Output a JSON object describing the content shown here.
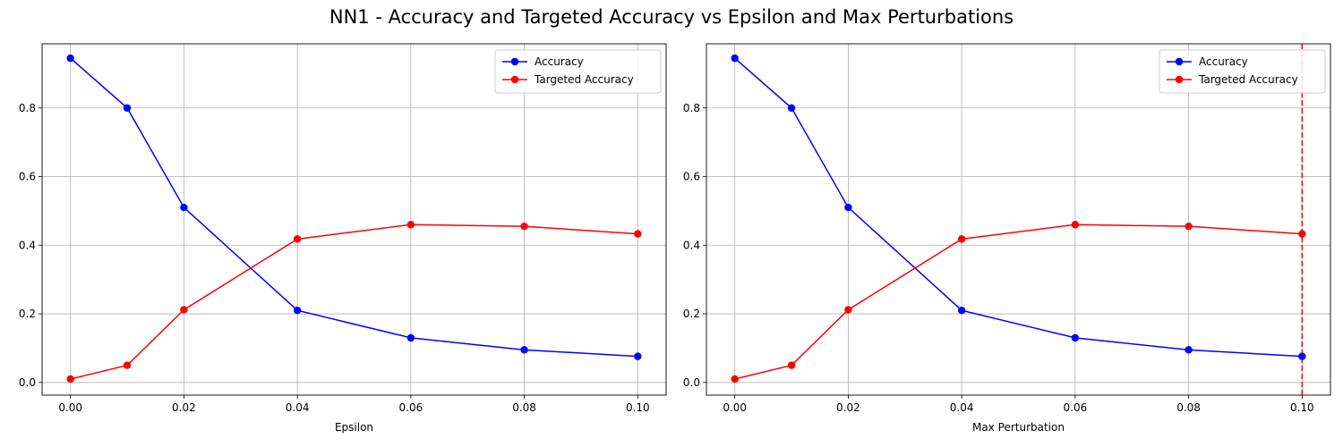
{
  "figure": {
    "title": "NN1 - Accuracy and Targeted Accuracy vs Epsilon and Max Perturbations"
  },
  "chart_data": [
    {
      "type": "line",
      "title": "",
      "xlabel": "Epsilon",
      "ylabel": "",
      "x": [
        0.0,
        0.01,
        0.02,
        0.04,
        0.06,
        0.08,
        0.1
      ],
      "xlim": [
        -0.005,
        0.105
      ],
      "ylim": [
        -0.037,
        0.987
      ],
      "xticks": [
        0.0,
        0.02,
        0.04,
        0.06,
        0.08,
        0.1
      ],
      "xtick_labels": [
        "0.00",
        "0.02",
        "0.04",
        "0.06",
        "0.08",
        "0.10"
      ],
      "yticks": [
        0.0,
        0.2,
        0.4,
        0.6,
        0.8
      ],
      "ytick_labels": [
        "0.0",
        "0.2",
        "0.4",
        "0.6",
        "0.8"
      ],
      "grid": true,
      "legend": "top-right",
      "series": [
        {
          "name": "Accuracy",
          "color": "#0000ff",
          "marker": "circle",
          "values": [
            0.945,
            0.8,
            0.51,
            0.21,
            0.13,
            0.095,
            0.076
          ]
        },
        {
          "name": "Targeted Accuracy",
          "color": "#ff0000",
          "marker": "circle",
          "values": [
            0.01,
            0.05,
            0.212,
            0.418,
            0.46,
            0.455,
            0.433
          ]
        }
      ]
    },
    {
      "type": "line",
      "title": "",
      "xlabel": "Max Perturbation",
      "ylabel": "",
      "x": [
        0.0,
        0.01,
        0.02,
        0.04,
        0.06,
        0.08,
        0.1
      ],
      "xlim": [
        -0.005,
        0.105
      ],
      "ylim": [
        -0.037,
        0.987
      ],
      "xticks": [
        0.0,
        0.02,
        0.04,
        0.06,
        0.08,
        0.1
      ],
      "xtick_labels": [
        "0.00",
        "0.02",
        "0.04",
        "0.06",
        "0.08",
        "0.10"
      ],
      "yticks": [
        0.0,
        0.2,
        0.4,
        0.6,
        0.8
      ],
      "ytick_labels": [
        "0.0",
        "0.2",
        "0.4",
        "0.6",
        "0.8"
      ],
      "grid": true,
      "legend": "top-right",
      "vline": {
        "x": 0.1,
        "color": "#ff0000",
        "style": "dashed"
      },
      "series": [
        {
          "name": "Accuracy",
          "color": "#0000ff",
          "marker": "circle",
          "values": [
            0.945,
            0.8,
            0.51,
            0.21,
            0.13,
            0.095,
            0.076
          ]
        },
        {
          "name": "Targeted Accuracy",
          "color": "#ff0000",
          "marker": "circle",
          "values": [
            0.01,
            0.05,
            0.212,
            0.418,
            0.46,
            0.455,
            0.433
          ]
        }
      ]
    }
  ]
}
